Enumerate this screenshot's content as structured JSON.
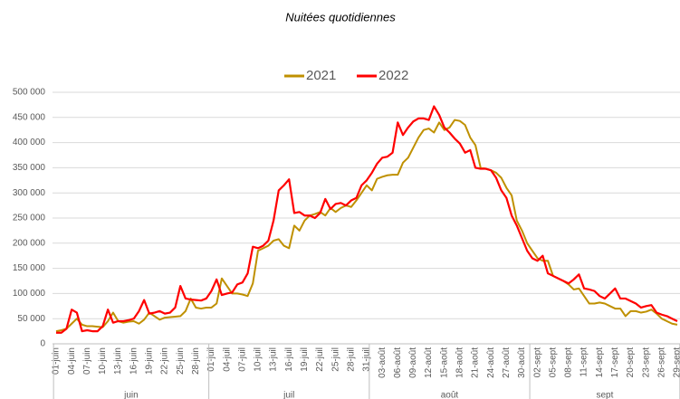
{
  "chart_data": {
    "type": "line",
    "title": "Nuitées quotidiennes",
    "categories": [
      "01-juin",
      null,
      null,
      "04-juin",
      null,
      null,
      "07-juin",
      null,
      null,
      "10-juin",
      null,
      null,
      "13-juin",
      null,
      null,
      "16-juin",
      null,
      null,
      "19-juin",
      null,
      null,
      "22-juin",
      null,
      null,
      "25-juin",
      null,
      null,
      "28-juin",
      null,
      null,
      "01-juil",
      null,
      null,
      "04-juil",
      null,
      null,
      "07-juil",
      null,
      null,
      "10-juil",
      null,
      null,
      "13-juil",
      null,
      null,
      "16-juil",
      null,
      null,
      "19-juil",
      null,
      null,
      "22-juil",
      null,
      null,
      "25-juil",
      null,
      null,
      "28-juil",
      null,
      null,
      "31-juil",
      null,
      null,
      "03-août",
      null,
      null,
      "06-août",
      null,
      null,
      "09-août",
      null,
      null,
      "12-août",
      null,
      null,
      "15-août",
      null,
      null,
      "18-août",
      null,
      null,
      "21-août",
      null,
      null,
      "24-août",
      null,
      null,
      "27-août",
      null,
      null,
      "30-août",
      null,
      null,
      "02-sept",
      null,
      null,
      "05-sept",
      null,
      null,
      "08-sept",
      null,
      null,
      "11-sept",
      null,
      null,
      "14-sept",
      null,
      null,
      "17-sept",
      null,
      null,
      "20-sept",
      null,
      null,
      "23-sept",
      null,
      null,
      "26-sept",
      null,
      null,
      "29-sept"
    ],
    "groups": [
      {
        "label": "juin",
        "count": 30
      },
      {
        "label": "juil",
        "count": 31
      },
      {
        "label": "août",
        "count": 31
      },
      {
        "label": "sept",
        "count": 29
      }
    ],
    "series": [
      {
        "name": "2021",
        "color": "#bf9000",
        "values": [
          25000,
          27000,
          30000,
          40000,
          50000,
          38000,
          35000,
          35000,
          34000,
          33000,
          45000,
          62000,
          45000,
          42000,
          44000,
          45000,
          40000,
          48000,
          62000,
          55000,
          48000,
          52000,
          53000,
          54000,
          55000,
          65000,
          90000,
          72000,
          70000,
          72000,
          72000,
          80000,
          130000,
          115000,
          100000,
          100000,
          98000,
          95000,
          120000,
          185000,
          190000,
          195000,
          205000,
          208000,
          195000,
          190000,
          235000,
          225000,
          245000,
          255000,
          258000,
          262000,
          255000,
          270000,
          262000,
          270000,
          275000,
          272000,
          285000,
          300000,
          315000,
          305000,
          328000,
          332000,
          335000,
          336000,
          336000,
          360000,
          370000,
          390000,
          410000,
          425000,
          428000,
          420000,
          440000,
          425000,
          430000,
          445000,
          443000,
          435000,
          410000,
          395000,
          350000,
          348000,
          345000,
          340000,
          330000,
          310000,
          295000,
          245000,
          225000,
          200000,
          185000,
          170000,
          165000,
          165000,
          135000,
          130000,
          125000,
          118000,
          108000,
          110000,
          95000,
          80000,
          80000,
          82000,
          80000,
          75000,
          70000,
          70000,
          55000,
          65000,
          65000,
          62000,
          64000,
          68000,
          60000,
          50000,
          45000,
          40000,
          38000
        ]
      },
      {
        "name": "2022",
        "color": "#ff0000",
        "values": [
          22000,
          22000,
          30000,
          68000,
          62000,
          25000,
          27000,
          25000,
          25000,
          35000,
          68000,
          42000,
          45000,
          45000,
          47000,
          50000,
          65000,
          87000,
          60000,
          62000,
          65000,
          60000,
          62000,
          72000,
          115000,
          90000,
          88000,
          87000,
          86000,
          90000,
          105000,
          128000,
          97000,
          100000,
          102000,
          118000,
          122000,
          140000,
          193000,
          190000,
          195000,
          205000,
          245000,
          305000,
          315000,
          327000,
          260000,
          262000,
          255000,
          255000,
          250000,
          260000,
          288000,
          268000,
          278000,
          280000,
          275000,
          285000,
          290000,
          315000,
          325000,
          340000,
          358000,
          370000,
          372000,
          380000,
          440000,
          415000,
          430000,
          442000,
          448000,
          448000,
          445000,
          472000,
          455000,
          430000,
          420000,
          408000,
          398000,
          380000,
          385000,
          350000,
          348000,
          348000,
          345000,
          330000,
          305000,
          290000,
          255000,
          235000,
          210000,
          185000,
          170000,
          165000,
          175000,
          140000,
          135000,
          130000,
          125000,
          120000,
          128000,
          138000,
          110000,
          108000,
          105000,
          95000,
          90000,
          100000,
          110000,
          90000,
          90000,
          85000,
          80000,
          72000,
          75000,
          77000,
          62000,
          58000,
          55000,
          50000,
          45000
        ]
      }
    ],
    "ylim": [
      0,
      500000
    ],
    "yticks": [
      0,
      {
        "value": 50000,
        "label": "50 000"
      },
      {
        "value": 100000,
        "label": "100 000"
      },
      {
        "value": 150000,
        "label": "150 000"
      },
      {
        "value": 200000,
        "label": "200 000"
      },
      {
        "value": 250000,
        "label": "250 000"
      },
      {
        "value": 300000,
        "label": "300 000"
      },
      {
        "value": 350000,
        "label": "350 000"
      },
      {
        "value": 400000,
        "label": "400 000"
      },
      {
        "value": 450000,
        "label": "450 000"
      },
      {
        "value": 500000,
        "label": "500 000"
      }
    ],
    "grid": true,
    "legend": "top"
  }
}
